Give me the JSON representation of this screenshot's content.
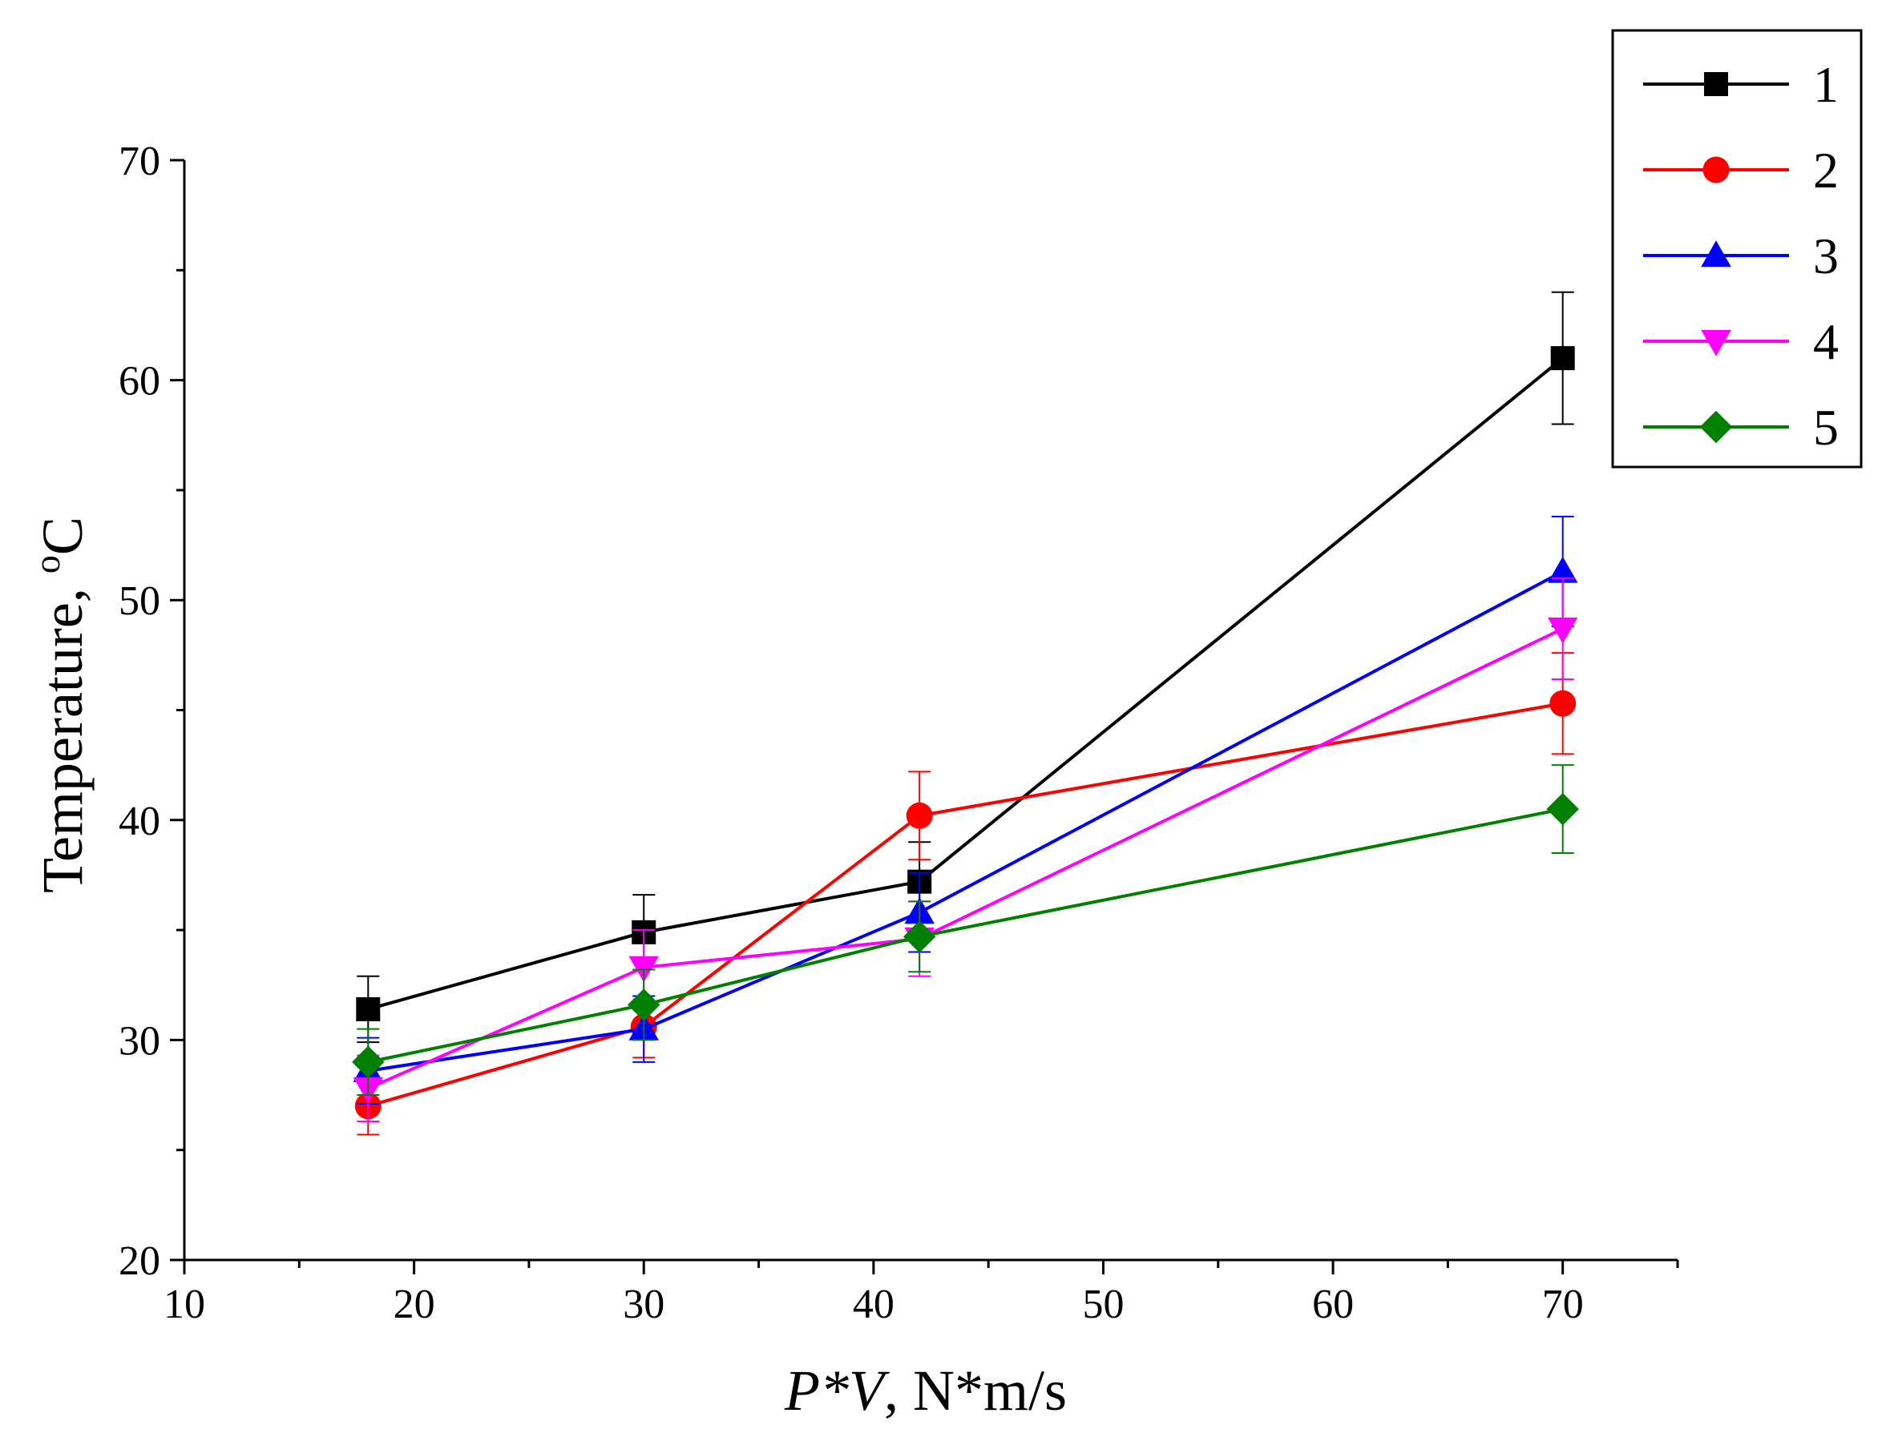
{
  "chart_data": {
    "type": "line",
    "title": "",
    "xlabel_italic": "P*V",
    "xlabel_rest": ", N*m/s",
    "ylabel_main": "Temperature, ",
    "ylabel_sup": "o",
    "ylabel_unit": "C",
    "xlim": [
      10,
      75
    ],
    "ylim": [
      20,
      70
    ],
    "x_ticks": [
      10,
      20,
      30,
      40,
      50,
      60,
      70
    ],
    "x_tick_labels": [
      "10",
      "20",
      "30",
      "40",
      "50",
      "60",
      "70"
    ],
    "y_ticks": [
      20,
      30,
      40,
      50,
      60,
      70
    ],
    "y_tick_labels": [
      "20",
      "30",
      "40",
      "50",
      "60",
      "70"
    ],
    "x": [
      18,
      30,
      42,
      70
    ],
    "legend_position": "top-right",
    "series": [
      {
        "name": "1",
        "color": "#000000",
        "marker": "square",
        "values": [
          31.4,
          34.9,
          37.2,
          61.0
        ],
        "errors": [
          1.5,
          1.7,
          1.8,
          3.0
        ]
      },
      {
        "name": "2",
        "color": "#ff0000",
        "marker": "circle",
        "values": [
          27.0,
          30.6,
          40.2,
          45.3
        ],
        "errors": [
          1.3,
          1.4,
          2.0,
          2.3
        ]
      },
      {
        "name": "3",
        "color": "#0000ff",
        "marker": "triangle-up",
        "values": [
          28.6,
          30.5,
          35.8,
          51.3
        ],
        "errors": [
          1.5,
          1.5,
          1.8,
          2.5
        ]
      },
      {
        "name": "4",
        "color": "#ff00ff",
        "marker": "triangle-down",
        "values": [
          27.8,
          33.3,
          34.6,
          48.7
        ],
        "errors": [
          1.5,
          1.7,
          1.7,
          2.3
        ]
      },
      {
        "name": "5",
        "color": "#007f00",
        "marker": "diamond",
        "values": [
          29.0,
          31.6,
          34.7,
          40.5
        ],
        "errors": [
          1.5,
          1.6,
          1.6,
          2.0
        ]
      }
    ]
  }
}
